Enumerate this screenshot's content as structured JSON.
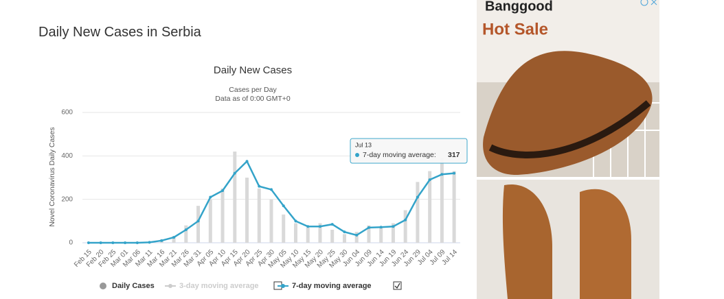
{
  "page_title": "Daily New Cases in Serbia",
  "ad": {
    "brand": "Banggood",
    "headline": "Hot Sale"
  },
  "chart_data": {
    "type": "bar-line",
    "title": "Daily New Cases",
    "subtitle": "Cases per Day",
    "subtitle2": "Data as of 0:00 GMT+0",
    "y_label": "Novel Coronavirus Daily Cases",
    "categories": [
      "Feb 15",
      "Feb 20",
      "Feb 25",
      "Mar 01",
      "Mar 06",
      "Mar 11",
      "Mar 16",
      "Mar 21",
      "Mar 26",
      "Mar 31",
      "Apr 05",
      "Apr 10",
      "Apr 15",
      "Apr 20",
      "Apr 25",
      "Apr 30",
      "May 05",
      "May 10",
      "May 15",
      "May 20",
      "May 25",
      "May 30",
      "Jun 04",
      "Jun 09",
      "Jun 14",
      "Jun 19",
      "Jun 24",
      "Jun 29",
      "Jul 04",
      "Jul 09",
      "Jul 14"
    ],
    "series": [
      {
        "name": "Daily Cases",
        "color": "#d9d9d9",
        "legend_color": "#999999",
        "kind": "bar",
        "values": [
          0,
          0,
          0,
          0,
          0,
          5,
          15,
          30,
          80,
          170,
          200,
          250,
          420,
          300,
          250,
          200,
          130,
          90,
          70,
          90,
          60,
          40,
          50,
          80,
          70,
          90,
          150,
          280,
          330,
          390,
          330
        ]
      },
      {
        "name": "3-day moving average",
        "color": "#cccccc",
        "kind": "line",
        "visible": false
      },
      {
        "name": "7-day moving average",
        "color": "#33a3c9",
        "kind": "line",
        "values": [
          0,
          0,
          0,
          0,
          0,
          2,
          10,
          25,
          60,
          100,
          210,
          240,
          320,
          375,
          260,
          245,
          170,
          100,
          75,
          75,
          85,
          50,
          35,
          70,
          72,
          75,
          105,
          210,
          290,
          315,
          320
        ]
      }
    ],
    "ylim": [
      0,
      600
    ],
    "yticks": [
      0,
      200,
      400,
      600
    ],
    "grid": true,
    "tooltip": {
      "date": "Jul 13",
      "label": "7-day moving average:",
      "value": 317
    }
  }
}
